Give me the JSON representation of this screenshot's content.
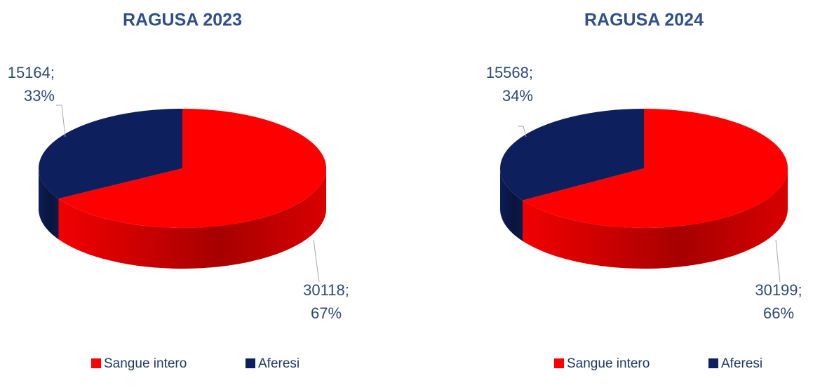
{
  "chart_data": [
    {
      "type": "pie",
      "title": "RAGUSA 2023",
      "categories": [
        "Sangue intero",
        "Aferesi"
      ],
      "values": [
        30118,
        15164
      ],
      "value_labels": [
        "30118; 67%",
        "15164; 33%"
      ],
      "colors": [
        "#ff0000",
        "#0d1f5c"
      ],
      "legend": "bottom"
    },
    {
      "type": "pie",
      "title": "RAGUSA 2024",
      "categories": [
        "Sangue intero",
        "Aferesi"
      ],
      "values": [
        30199,
        15568
      ],
      "value_labels": [
        "30199; 66%",
        "15568; 34%"
      ],
      "colors": [
        "#ff0000",
        "#0d1f5c"
      ],
      "legend": "bottom"
    }
  ]
}
